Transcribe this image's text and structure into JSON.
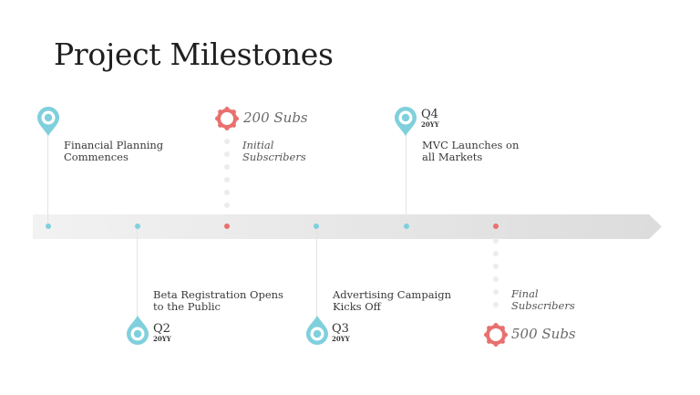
{
  "title": "Project Milestones",
  "colors": {
    "teal": "#7fd0dc",
    "coral": "#e8706f",
    "bar": "#e6e6e6"
  },
  "milestones": [
    {
      "label": "Financial Planning\nCommences"
    },
    {
      "label": "Beta Registration Opens\nto the Public",
      "quarter": "Q2",
      "year": "20YY"
    },
    {
      "label": "Initial\nSubscribers",
      "badge": "200 Subs"
    },
    {
      "label": "Advertising Campaign\nKicks Off",
      "quarter": "Q3",
      "year": "20YY"
    },
    {
      "label": "MVC Launches on\nall Markets",
      "quarter": "Q4",
      "year": "20YY"
    },
    {
      "label": "Final\nSubscribers",
      "badge": "500 Subs"
    }
  ]
}
